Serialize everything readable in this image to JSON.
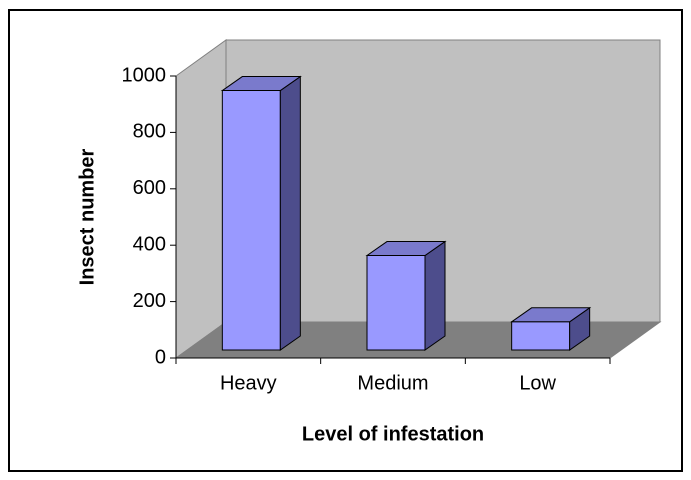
{
  "chart_data": {
    "type": "bar3d",
    "categories": [
      "Heavy",
      "Medium",
      "Low"
    ],
    "values": [
      920,
      335,
      100
    ],
    "color": "#9999ff",
    "ylim": [
      0,
      1000
    ],
    "yticks": [
      0,
      200,
      400,
      600,
      800,
      1000
    ],
    "xlabel": "Level of infestation",
    "ylabel": "Insect number",
    "grid": false
  }
}
